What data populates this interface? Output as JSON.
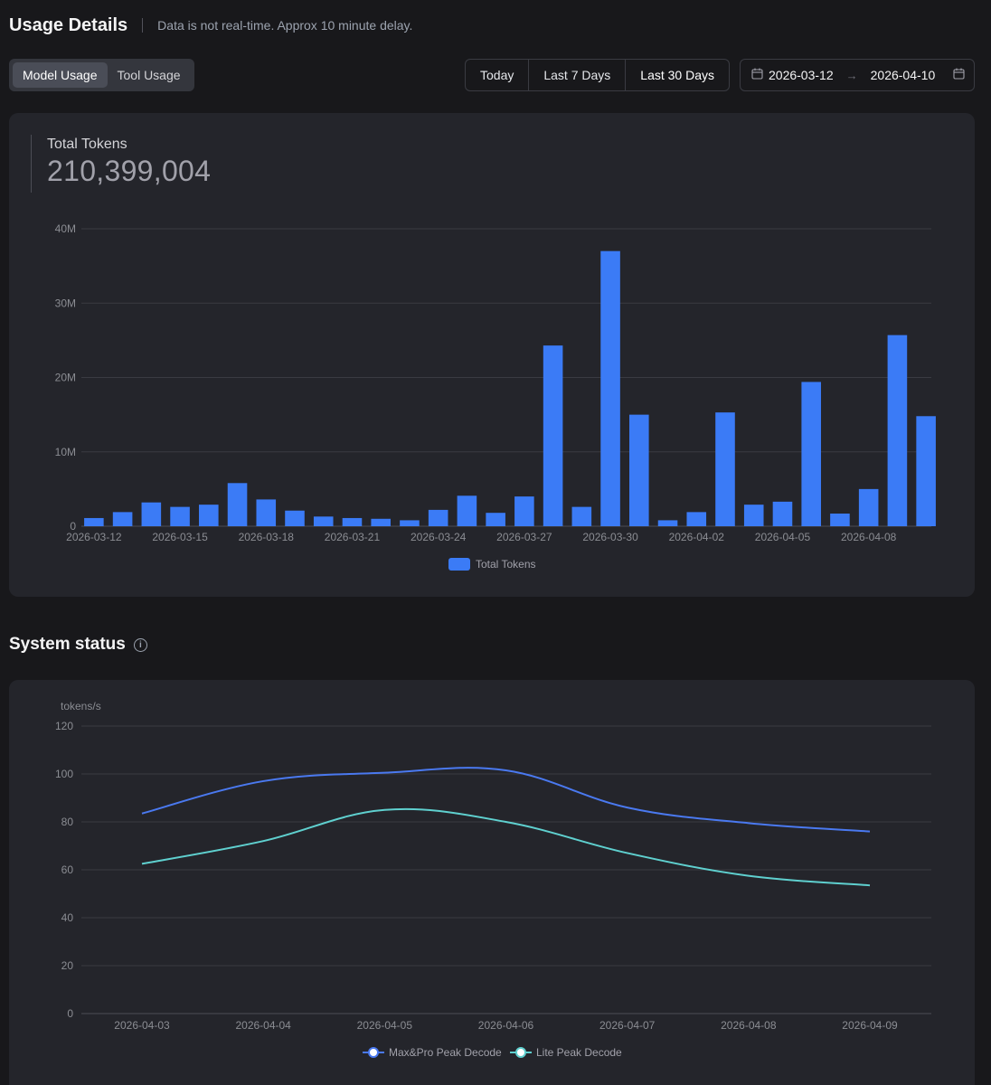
{
  "header": {
    "title": "Usage Details",
    "subtitle": "Data is not real-time. Approx 10 minute delay."
  },
  "tabs": [
    {
      "label": "Model Usage",
      "active": true
    },
    {
      "label": "Tool Usage",
      "active": false
    }
  ],
  "range_buttons": [
    {
      "label": "Today",
      "active": false
    },
    {
      "label": "Last 7 Days",
      "active": false
    },
    {
      "label": "Last 30 Days",
      "active": true
    }
  ],
  "date_range": {
    "start": "2026-03-12",
    "arrow": "→",
    "end": "2026-04-10"
  },
  "usage": {
    "total_label": "Total Tokens",
    "total_value": "210,399,004"
  },
  "system_status": {
    "title": "System status",
    "info_glyph": "i"
  },
  "colors": {
    "bar": "#3b7bf6",
    "line_max": "#4a79f0",
    "line_lite": "#5fd0cf",
    "grid": "#3a3b42",
    "axis_text": "#8b8d93"
  },
  "chart_data": [
    {
      "type": "bar",
      "title": "Total Tokens",
      "legend": [
        "Total Tokens"
      ],
      "categories": [
        "2026-03-12",
        "2026-03-13",
        "2026-03-14",
        "2026-03-15",
        "2026-03-16",
        "2026-03-17",
        "2026-03-18",
        "2026-03-19",
        "2026-03-20",
        "2026-03-21",
        "2026-03-22",
        "2026-03-23",
        "2026-03-24",
        "2026-03-25",
        "2026-03-26",
        "2026-03-27",
        "2026-03-28",
        "2026-03-29",
        "2026-03-30",
        "2026-03-31",
        "2026-04-01",
        "2026-04-02",
        "2026-04-03",
        "2026-04-04",
        "2026-04-05",
        "2026-04-06",
        "2026-04-07",
        "2026-04-08",
        "2026-04-09",
        "2026-04-10"
      ],
      "x_tick_labels": [
        "2026-03-12",
        "",
        "",
        "2026-03-15",
        "",
        "",
        "2026-03-18",
        "",
        "",
        "2026-03-21",
        "",
        "",
        "2026-03-24",
        "",
        "",
        "2026-03-27",
        "",
        "",
        "2026-03-30",
        "",
        "",
        "2026-04-02",
        "",
        "",
        "2026-04-05",
        "",
        "",
        "2026-04-08",
        "",
        ""
      ],
      "values": [
        1100000,
        1900000,
        3200000,
        2600000,
        2900000,
        5800000,
        3600000,
        2100000,
        1300000,
        1100000,
        1000000,
        800000,
        2200000,
        4100000,
        1800000,
        4000000,
        24300000,
        2600000,
        37000000,
        15000000,
        800000,
        1900000,
        15300000,
        2900000,
        3300000,
        19400000,
        1700000,
        5000000,
        25700000,
        14800000
      ],
      "ylim": [
        0,
        40000000
      ],
      "y_ticks": [
        0,
        10000000,
        20000000,
        30000000,
        40000000
      ],
      "y_tick_labels": [
        "0",
        "10M",
        "20M",
        "30M",
        "40M"
      ],
      "xlabel": "",
      "ylabel": ""
    },
    {
      "type": "line",
      "title": "",
      "ylabel": "tokens/s",
      "x": [
        "2026-04-03",
        "2026-04-04",
        "2026-04-05",
        "2026-04-06",
        "2026-04-07",
        "2026-04-08",
        "2026-04-09"
      ],
      "ylim": [
        0,
        120
      ],
      "y_ticks": [
        0,
        20,
        40,
        60,
        80,
        100,
        120
      ],
      "series": [
        {
          "name": "Max&Pro Peak Decode",
          "values": [
            83.5,
            97,
            100.5,
            101.5,
            86,
            79.5,
            76
          ]
        },
        {
          "name": "Lite Peak Decode",
          "values": [
            62.5,
            72,
            85,
            80,
            67,
            57.5,
            53.5
          ]
        }
      ]
    }
  ]
}
